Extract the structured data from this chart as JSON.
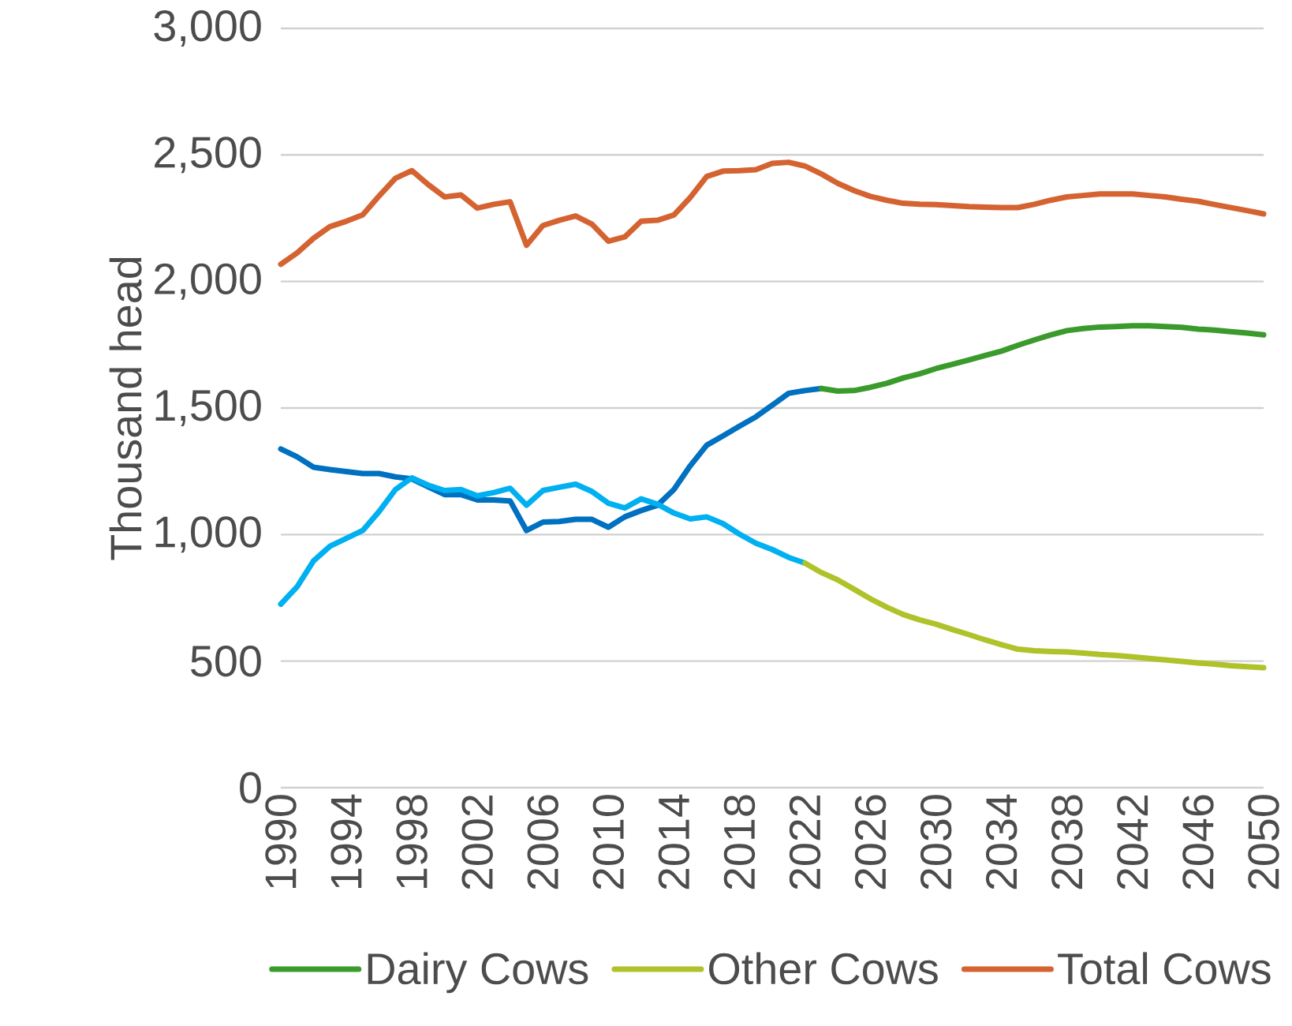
{
  "chart_data": {
    "type": "line",
    "ylabel": "Thousand head",
    "xlim": [
      1990,
      2050
    ],
    "xticks": [
      1990,
      1994,
      1998,
      2002,
      2006,
      2010,
      2014,
      2018,
      2022,
      2026,
      2030,
      2034,
      2038,
      2042,
      2046,
      2050
    ],
    "ylim": [
      0,
      3000
    ],
    "yticks": [
      0,
      500,
      {
        "value": 1000,
        "label": "1,000"
      },
      {
        "value": 1500,
        "label": "1,500"
      },
      {
        "value": 2000,
        "label": "2,000"
      },
      {
        "value": 2500,
        "label": "2,500"
      },
      {
        "value": 3000,
        "label": "3,000"
      }
    ],
    "grid": "y",
    "legend": "bottom",
    "series": [
      {
        "color": "#0070c0",
        "x": [
          1990,
          1991,
          1992,
          1993,
          1994,
          1995,
          1996,
          1997,
          1998,
          1999,
          2000,
          2001,
          2002,
          2003,
          2004,
          2005,
          2006,
          2007,
          2008,
          2009,
          2010,
          2011,
          2012,
          2013,
          2014,
          2015,
          2016,
          2017,
          2018,
          2019,
          2020,
          2021,
          2022,
          2023
        ],
        "values": [
          1338,
          1307,
          1266,
          1257,
          1249,
          1241,
          1241,
          1228,
          1220,
          1189,
          1158,
          1158,
          1137,
          1137,
          1133,
          1016,
          1049,
          1052,
          1060,
          1060,
          1029,
          1070,
          1095,
          1116,
          1178,
          1272,
          1353,
          1390,
          1428,
          1465,
          1511,
          1558,
          1569,
          1577
        ]
      },
      {
        "name": "Dairy Cows",
        "color": "#3a9a2c",
        "x": [
          2023,
          2024,
          2025,
          2026,
          2027,
          2028,
          2029,
          2030,
          2031,
          2032,
          2033,
          2034,
          2035,
          2036,
          2037,
          2038,
          2039,
          2040,
          2041,
          2042,
          2043,
          2044,
          2045,
          2046,
          2047,
          2048,
          2049,
          2050
        ],
        "values": [
          1577,
          1567,
          1569,
          1582,
          1598,
          1619,
          1635,
          1656,
          1673,
          1690,
          1708,
          1725,
          1748,
          1769,
          1789,
          1806,
          1814,
          1820,
          1822,
          1825,
          1825,
          1822,
          1819,
          1812,
          1808,
          1802,
          1796,
          1789
        ]
      },
      {
        "color": "#00b0f0",
        "x": [
          1990,
          1991,
          1992,
          1993,
          1994,
          1995,
          1996,
          1997,
          1998,
          1999,
          2000,
          2001,
          2002,
          2003,
          2004,
          2005,
          2006,
          2007,
          2008,
          2009,
          2010,
          2011,
          2012,
          2013,
          2014,
          2015,
          2016,
          2017,
          2018,
          2019,
          2020,
          2021,
          2022
        ],
        "values": [
          725,
          794,
          896,
          954,
          985,
          1016,
          1091,
          1178,
          1224,
          1195,
          1174,
          1178,
          1153,
          1166,
          1183,
          1116,
          1174,
          1187,
          1199,
          1170,
          1124,
          1105,
          1141,
          1120,
          1085,
          1062,
          1070,
          1043,
          1002,
          966,
          941,
          910,
          887
        ]
      },
      {
        "name": "Other Cows",
        "color": "#afc22a",
        "x": [
          2022,
          2023,
          2024,
          2025,
          2026,
          2027,
          2028,
          2029,
          2030,
          2031,
          2032,
          2033,
          2034,
          2035,
          2036,
          2037,
          2038,
          2039,
          2040,
          2041,
          2042,
          2043,
          2044,
          2045,
          2046,
          2047,
          2048,
          2049,
          2050
        ],
        "values": [
          887,
          850,
          821,
          784,
          746,
          713,
          684,
          663,
          646,
          625,
          605,
          584,
          565,
          547,
          541,
          538,
          536,
          532,
          526,
          522,
          517,
          511,
          505,
          499,
          493,
          488,
          482,
          478,
          474
        ]
      },
      {
        "name": "Total Cows",
        "color": "#d46331",
        "x": [
          1990,
          1991,
          1992,
          1993,
          1994,
          1995,
          1996,
          1997,
          1998,
          1999,
          2000,
          2001,
          2002,
          2003,
          2004,
          2005,
          2006,
          2007,
          2008,
          2009,
          2010,
          2011,
          2012,
          2013,
          2014,
          2015,
          2016,
          2017,
          2018,
          2019,
          2020,
          2021,
          2022,
          2023,
          2024,
          2025,
          2026,
          2027,
          2028,
          2029,
          2030,
          2031,
          2032,
          2033,
          2034,
          2035,
          2036,
          2037,
          2038,
          2039,
          2040,
          2041,
          2042,
          2043,
          2044,
          2045,
          2046,
          2047,
          2048,
          2049,
          2050
        ],
        "values": [
          2068,
          2113,
          2171,
          2217,
          2238,
          2263,
          2338,
          2408,
          2438,
          2383,
          2334,
          2342,
          2290,
          2305,
          2315,
          2143,
          2221,
          2242,
          2259,
          2226,
          2159,
          2176,
          2238,
          2242,
          2263,
          2332,
          2415,
          2436,
          2438,
          2442,
          2467,
          2471,
          2456,
          2425,
          2388,
          2359,
          2336,
          2321,
          2309,
          2305,
          2304,
          2300,
          2296,
          2294,
          2292,
          2292,
          2305,
          2321,
          2334,
          2340,
          2346,
          2346,
          2346,
          2340,
          2334,
          2325,
          2317,
          2304,
          2292,
          2280,
          2267
        ]
      }
    ]
  }
}
